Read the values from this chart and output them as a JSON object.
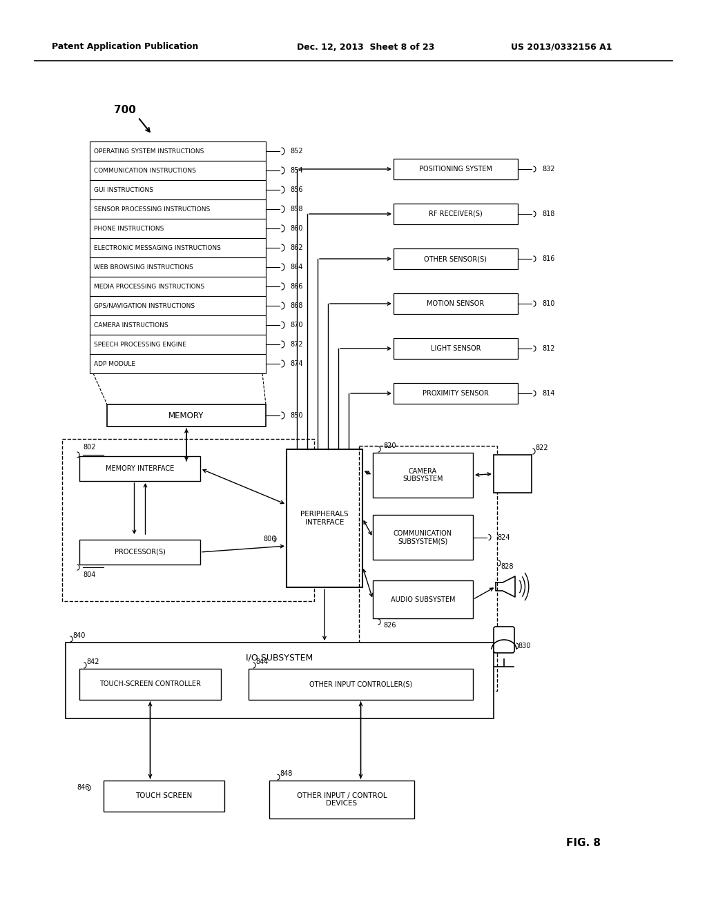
{
  "header_left": "Patent Application Publication",
  "header_mid": "Dec. 12, 2013  Sheet 8 of 23",
  "header_right": "US 2013/0332156 A1",
  "fig_label": "FIG. 8",
  "background": "#ffffff",
  "memory_rows": [
    [
      "OPERATING SYSTEM INSTRUCTIONS",
      "852"
    ],
    [
      "COMMUNICATION INSTRUCTIONS",
      "854"
    ],
    [
      "GUI INSTRUCTIONS",
      "856"
    ],
    [
      "SENSOR PROCESSING INSTRUCTIONS",
      "858"
    ],
    [
      "PHONE INSTRUCTIONS",
      "860"
    ],
    [
      "ELECTRONIC MESSAGING INSTRUCTIONS",
      "862"
    ],
    [
      "WEB BROWSING INSTRUCTIONS",
      "864"
    ],
    [
      "MEDIA PROCESSING INSTRUCTIONS",
      "866"
    ],
    [
      "GPS/NAVIGATION INSTRUCTIONS",
      "868"
    ],
    [
      "CAMERA INSTRUCTIONS",
      "870"
    ],
    [
      "SPEECH PROCESSING ENGINE",
      "872"
    ],
    [
      "ADP MODULE",
      "874"
    ]
  ],
  "right_boxes": [
    [
      "POSITIONING SYSTEM",
      "832"
    ],
    [
      "RF RECEIVER(S)",
      "818"
    ],
    [
      "OTHER SENSOR(S)",
      "816"
    ],
    [
      "MOTION SENSOR",
      "810"
    ],
    [
      "LIGHT SENSOR",
      "812"
    ],
    [
      "PROXIMITY SENSOR",
      "814"
    ]
  ]
}
